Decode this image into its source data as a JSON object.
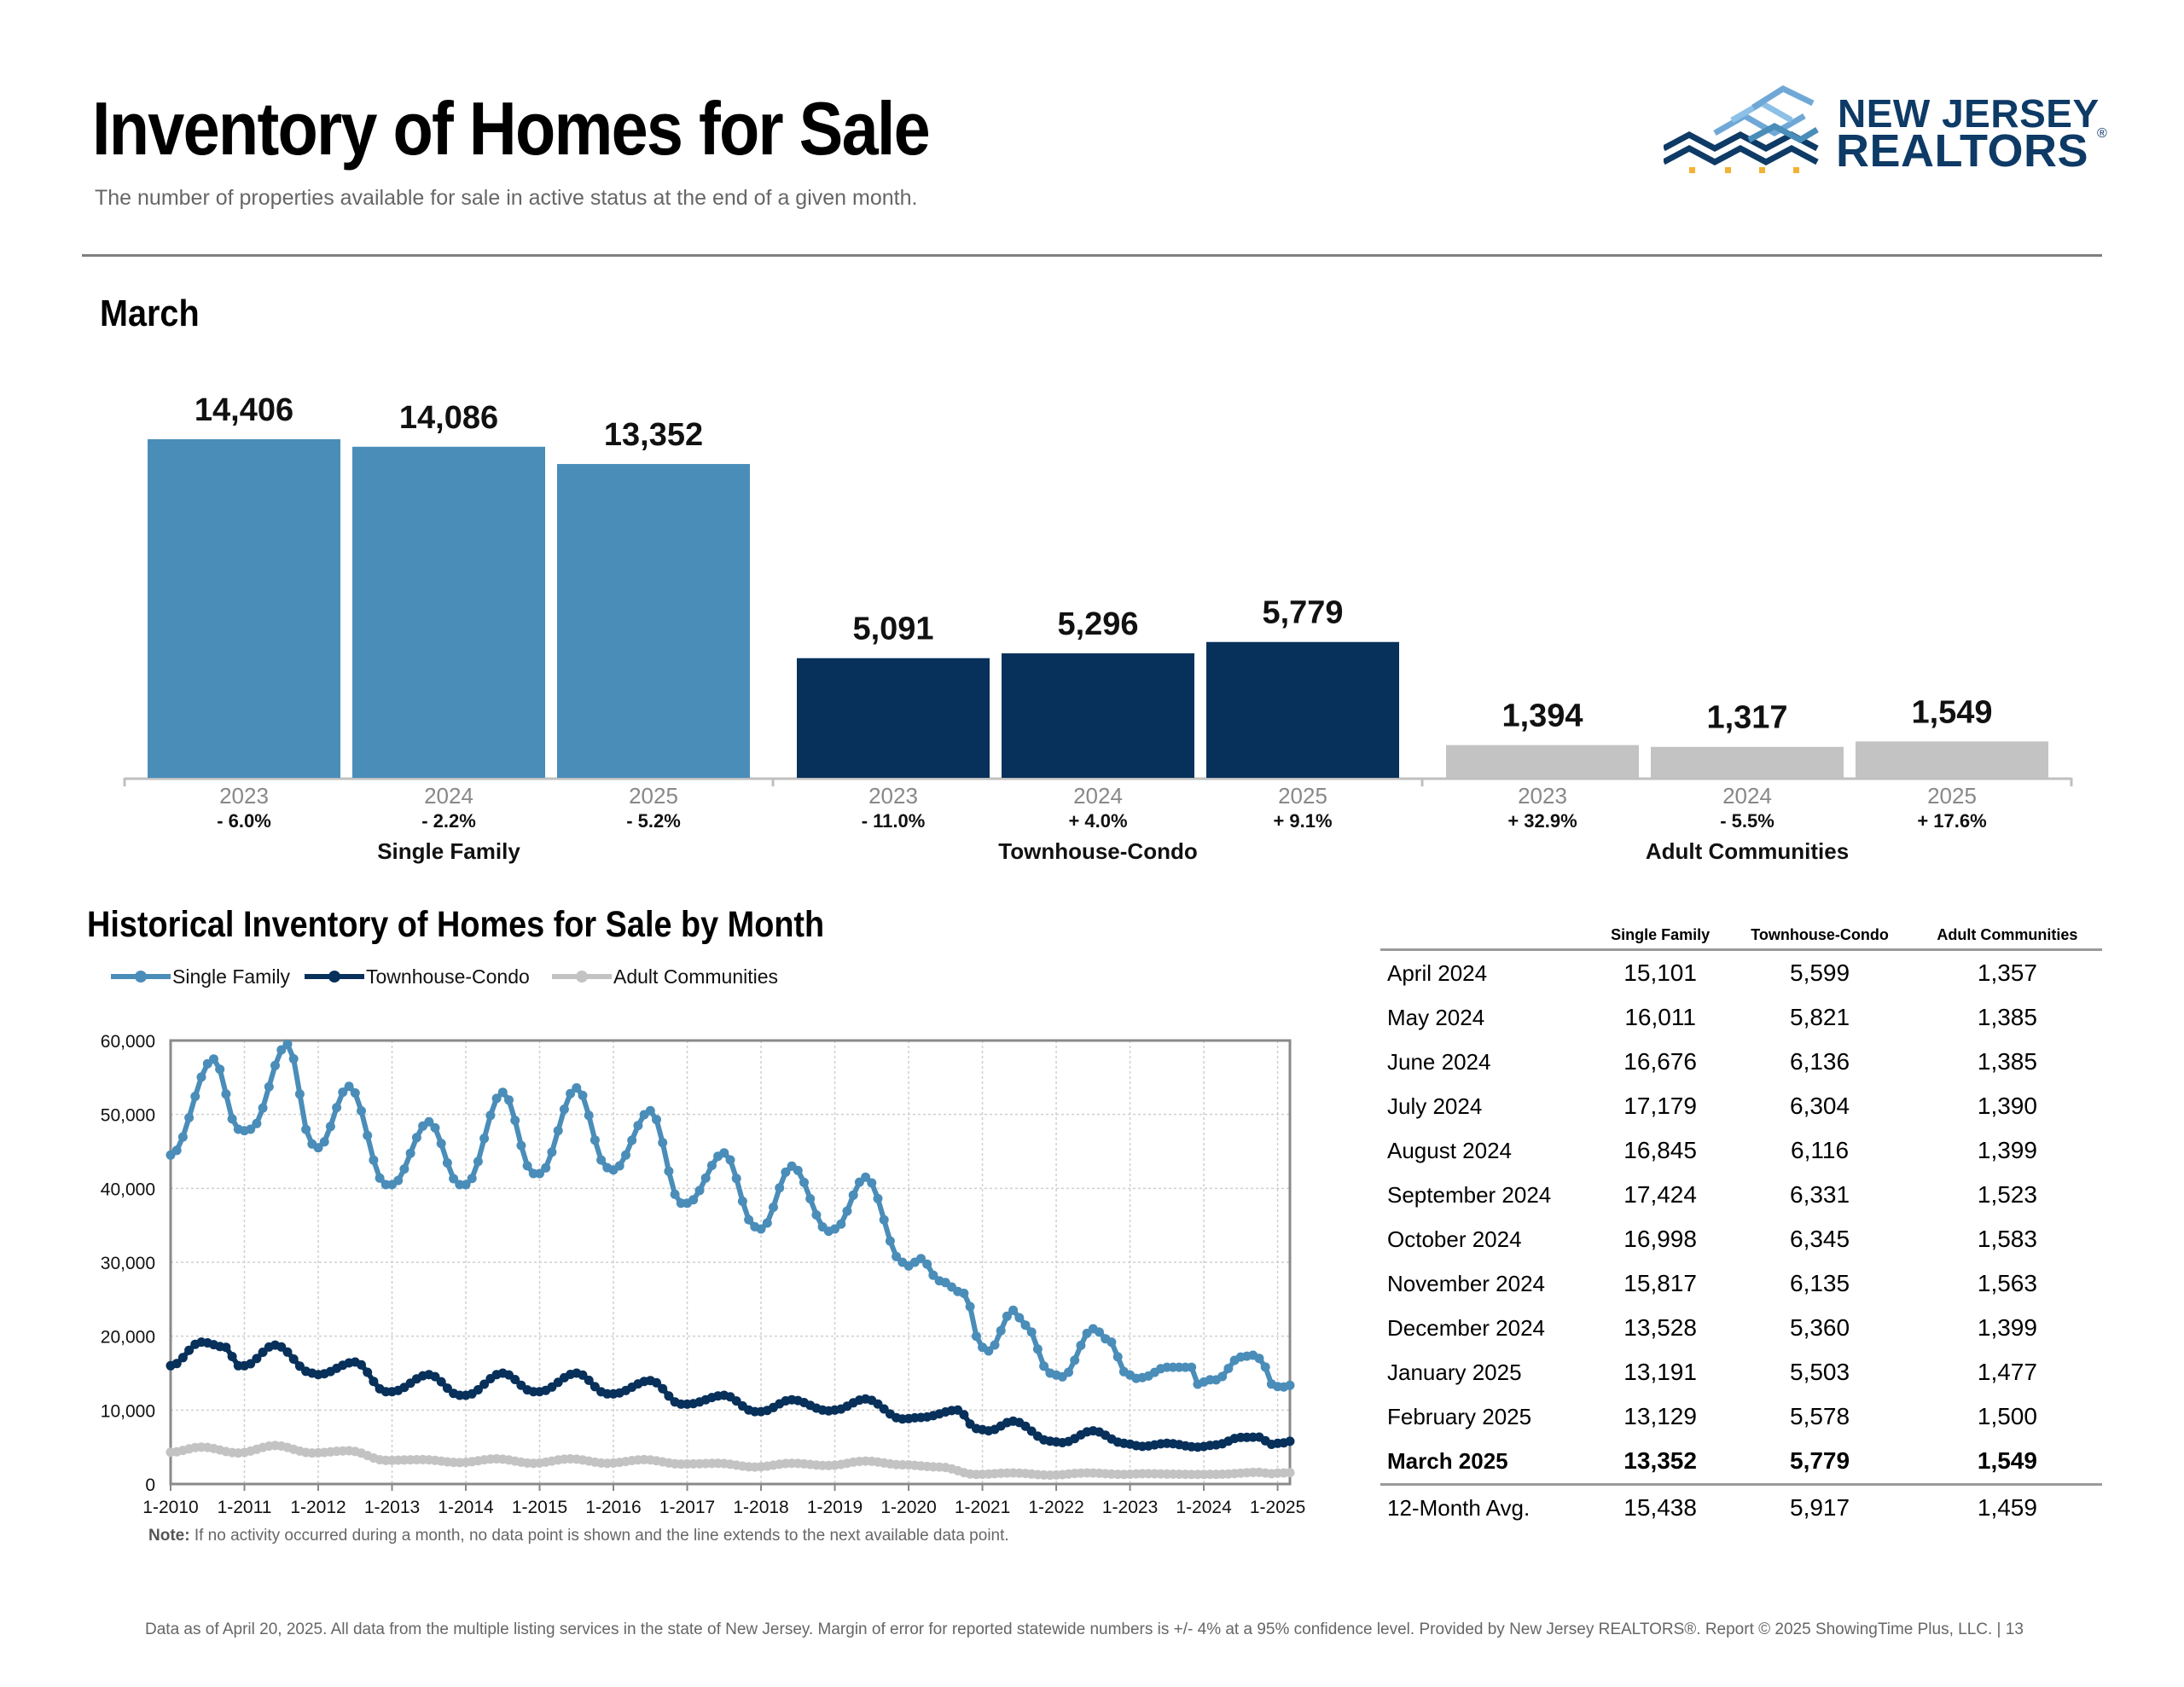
{
  "header": {
    "title": "Inventory of Homes for Sale",
    "subtitle": "The number of properties available for sale in active status at the end of a given month.",
    "logo_line1": "NEW JERSEY",
    "logo_line2": "REALTORS",
    "logo_reg": "®"
  },
  "colors": {
    "single_family": "#4a8db9",
    "townhouse": "#07305a",
    "adult": "#c3c3c3"
  },
  "chart_data": [
    {
      "type": "bar",
      "title": "March",
      "groups": [
        {
          "name": "Single Family",
          "years": [
            "2023",
            "2024",
            "2025"
          ],
          "values": [
            14406,
            14086,
            13352
          ],
          "labels": [
            "14,406",
            "14,086",
            "13,352"
          ],
          "changes": [
            "- 6.0%",
            "- 2.2%",
            "- 5.2%"
          ]
        },
        {
          "name": "Townhouse-Condo",
          "years": [
            "2023",
            "2024",
            "2025"
          ],
          "values": [
            5091,
            5296,
            5779
          ],
          "labels": [
            "5,091",
            "5,296",
            "5,779"
          ],
          "changes": [
            "- 11.0%",
            "+ 4.0%",
            "+ 9.1%"
          ]
        },
        {
          "name": "Adult Communities",
          "years": [
            "2023",
            "2024",
            "2025"
          ],
          "values": [
            1394,
            1317,
            1549
          ],
          "labels": [
            "1,394",
            "1,317",
            "1,549"
          ],
          "changes": [
            "+ 32.9%",
            "- 5.5%",
            "+ 17.6%"
          ]
        }
      ]
    },
    {
      "type": "line",
      "title": "Historical Inventory of Homes for Sale by Month",
      "x_start": "2010-01",
      "x_end": "2025-03",
      "x_ticks": [
        "1-2010",
        "1-2011",
        "1-2012",
        "1-2013",
        "1-2014",
        "1-2015",
        "1-2016",
        "1-2017",
        "1-2018",
        "1-2019",
        "1-2020",
        "1-2021",
        "1-2022",
        "1-2023",
        "1-2024",
        "1-2025"
      ],
      "y_ticks": [
        "0",
        "10,000",
        "20,000",
        "30,000",
        "40,000",
        "50,000",
        "60,000"
      ],
      "ylim": [
        0,
        60000
      ],
      "grid": true,
      "legend_position": "top-left",
      "series": [
        {
          "name": "Single Family",
          "color": "#4a8db9",
          "keypoints": [
            [
              "2010-01",
              44500
            ],
            [
              "2010-08",
              57500
            ],
            [
              "2010-12",
              48000
            ],
            [
              "2011-01",
              47800
            ],
            [
              "2011-02",
              48000
            ],
            [
              "2011-08",
              59500
            ],
            [
              "2011-12",
              46000
            ],
            [
              "2012-01",
              45500
            ],
            [
              "2012-06",
              53800
            ],
            [
              "2012-12",
              40500
            ],
            [
              "2013-01",
              40500
            ],
            [
              "2013-07",
              49000
            ],
            [
              "2013-12",
              40500
            ],
            [
              "2014-01",
              40500
            ],
            [
              "2014-07",
              53000
            ],
            [
              "2014-12",
              42000
            ],
            [
              "2015-01",
              42000
            ],
            [
              "2015-07",
              53600
            ],
            [
              "2015-12",
              42800
            ],
            [
              "2016-01",
              42500
            ],
            [
              "2016-07",
              50500
            ],
            [
              "2016-12",
              38000
            ],
            [
              "2017-01",
              38000
            ],
            [
              "2017-07",
              44800
            ],
            [
              "2017-12",
              34800
            ],
            [
              "2018-01",
              34500
            ],
            [
              "2018-06",
              43000
            ],
            [
              "2018-12",
              34200
            ],
            [
              "2019-01",
              34500
            ],
            [
              "2019-06",
              41500
            ],
            [
              "2019-12",
              30000
            ],
            [
              "2020-01",
              29500
            ],
            [
              "2020-03",
              30500
            ],
            [
              "2020-06",
              27500
            ],
            [
              "2020-10",
              25800
            ],
            [
              "2020-11",
              24000
            ],
            [
              "2020-12",
              20000
            ],
            [
              "2021-01",
              18500
            ],
            [
              "2021-02",
              18000
            ],
            [
              "2021-06",
              23500
            ],
            [
              "2021-08",
              21500
            ],
            [
              "2021-12",
              15000
            ],
            [
              "2022-02",
              14500
            ],
            [
              "2022-07",
              21000
            ],
            [
              "2022-10",
              19200
            ],
            [
              "2022-12",
              15200
            ],
            [
              "2023-02",
              14300
            ],
            [
              "2023-03",
              14400
            ],
            [
              "2023-07",
              15800
            ],
            [
              "2023-11",
              15800
            ],
            [
              "2023-12",
              13500
            ],
            [
              "2024-02",
              14100
            ],
            [
              "2024-03",
              14086
            ],
            [
              "2024-07",
              17179
            ],
            [
              "2024-09",
              17424
            ],
            [
              "2024-10",
              16998
            ],
            [
              "2024-11",
              15817
            ],
            [
              "2024-12",
              13528
            ],
            [
              "2025-01",
              13191
            ],
            [
              "2025-02",
              13129
            ],
            [
              "2025-03",
              13352
            ]
          ]
        },
        {
          "name": "Townhouse-Condo",
          "color": "#07305a",
          "keypoints": [
            [
              "2010-01",
              16000
            ],
            [
              "2010-06",
              19200
            ],
            [
              "2010-10",
              18500
            ],
            [
              "2010-12",
              16000
            ],
            [
              "2011-01",
              16000
            ],
            [
              "2011-06",
              18800
            ],
            [
              "2011-12",
              15000
            ],
            [
              "2012-01",
              14800
            ],
            [
              "2012-07",
              16500
            ],
            [
              "2012-12",
              12500
            ],
            [
              "2013-01",
              12500
            ],
            [
              "2013-07",
              14800
            ],
            [
              "2013-12",
              12000
            ],
            [
              "2014-01",
              12000
            ],
            [
              "2014-07",
              15000
            ],
            [
              "2014-12",
              12500
            ],
            [
              "2015-01",
              12500
            ],
            [
              "2015-07",
              15000
            ],
            [
              "2015-12",
              12200
            ],
            [
              "2016-01",
              12200
            ],
            [
              "2016-07",
              14000
            ],
            [
              "2016-12",
              10800
            ],
            [
              "2017-01",
              10800
            ],
            [
              "2017-07",
              12000
            ],
            [
              "2017-12",
              9800
            ],
            [
              "2018-01",
              9800
            ],
            [
              "2018-06",
              11400
            ],
            [
              "2018-12",
              9900
            ],
            [
              "2019-01",
              10000
            ],
            [
              "2019-06",
              11500
            ],
            [
              "2019-12",
              8800
            ],
            [
              "2020-03",
              9000
            ],
            [
              "2020-09",
              10000
            ],
            [
              "2020-12",
              7500
            ],
            [
              "2021-02",
              7200
            ],
            [
              "2021-06",
              8500
            ],
            [
              "2021-12",
              5800
            ],
            [
              "2022-02",
              5600
            ],
            [
              "2022-07",
              7200
            ],
            [
              "2022-12",
              5500
            ],
            [
              "2023-03",
              5091
            ],
            [
              "2023-07",
              5500
            ],
            [
              "2023-12",
              5000
            ],
            [
              "2024-03",
              5296
            ],
            [
              "2024-07",
              6304
            ],
            [
              "2024-10",
              6345
            ],
            [
              "2024-12",
              5360
            ],
            [
              "2025-01",
              5503
            ],
            [
              "2025-02",
              5578
            ],
            [
              "2025-03",
              5779
            ]
          ]
        },
        {
          "name": "Adult Communities",
          "color": "#c3c3c3",
          "keypoints": [
            [
              "2010-01",
              4300
            ],
            [
              "2010-06",
              5000
            ],
            [
              "2010-12",
              4200
            ],
            [
              "2011-06",
              5200
            ],
            [
              "2011-12",
              4200
            ],
            [
              "2012-06",
              4500
            ],
            [
              "2012-12",
              3200
            ],
            [
              "2013-06",
              3300
            ],
            [
              "2013-12",
              2900
            ],
            [
              "2014-06",
              3400
            ],
            [
              "2014-12",
              2800
            ],
            [
              "2015-06",
              3400
            ],
            [
              "2015-12",
              2800
            ],
            [
              "2016-06",
              3300
            ],
            [
              "2016-12",
              2700
            ],
            [
              "2017-06",
              2800
            ],
            [
              "2017-12",
              2300
            ],
            [
              "2018-06",
              2800
            ],
            [
              "2018-12",
              2500
            ],
            [
              "2019-06",
              3100
            ],
            [
              "2019-12",
              2600
            ],
            [
              "2020-06",
              2300
            ],
            [
              "2020-12",
              1300
            ],
            [
              "2021-06",
              1500
            ],
            [
              "2021-12",
              1200
            ],
            [
              "2022-06",
              1500
            ],
            [
              "2022-12",
              1300
            ],
            [
              "2023-03",
              1394
            ],
            [
              "2023-12",
              1300
            ],
            [
              "2024-03",
              1317
            ],
            [
              "2024-10",
              1583
            ],
            [
              "2024-12",
              1399
            ],
            [
              "2025-01",
              1477
            ],
            [
              "2025-02",
              1500
            ],
            [
              "2025-03",
              1549
            ]
          ]
        }
      ]
    },
    {
      "type": "table",
      "columns": [
        "",
        "Single Family",
        "Townhouse-Condo",
        "Adult Communities"
      ],
      "rows": [
        [
          "April 2024",
          "15,101",
          "5,599",
          "1,357"
        ],
        [
          "May 2024",
          "16,011",
          "5,821",
          "1,385"
        ],
        [
          "June 2024",
          "16,676",
          "6,136",
          "1,385"
        ],
        [
          "July 2024",
          "17,179",
          "6,304",
          "1,390"
        ],
        [
          "August 2024",
          "16,845",
          "6,116",
          "1,399"
        ],
        [
          "September 2024",
          "17,424",
          "6,331",
          "1,523"
        ],
        [
          "October 2024",
          "16,998",
          "6,345",
          "1,583"
        ],
        [
          "November 2024",
          "15,817",
          "6,135",
          "1,563"
        ],
        [
          "December 2024",
          "13,528",
          "5,360",
          "1,399"
        ],
        [
          "January 2025",
          "13,191",
          "5,503",
          "1,477"
        ],
        [
          "February 2025",
          "13,129",
          "5,578",
          "1,500"
        ],
        [
          "March 2025",
          "13,352",
          "5,779",
          "1,549"
        ]
      ],
      "avg_row": [
        "12-Month Avg.",
        "15,438",
        "5,917",
        "1,459"
      ]
    }
  ],
  "note": {
    "label": "Note:",
    "text": " If no activity occurred during a month, no data point is shown and the line extends to the next available data point."
  },
  "footer": "Data as of April 20, 2025. All data from the multiple listing services in the state of New Jersey. Margin of error for reported statewide numbers is +/- 4% at a 95% confidence level. Provided by New Jersey REALTORS®. Report © 2025 ShowingTime Plus, LLC. |  13"
}
